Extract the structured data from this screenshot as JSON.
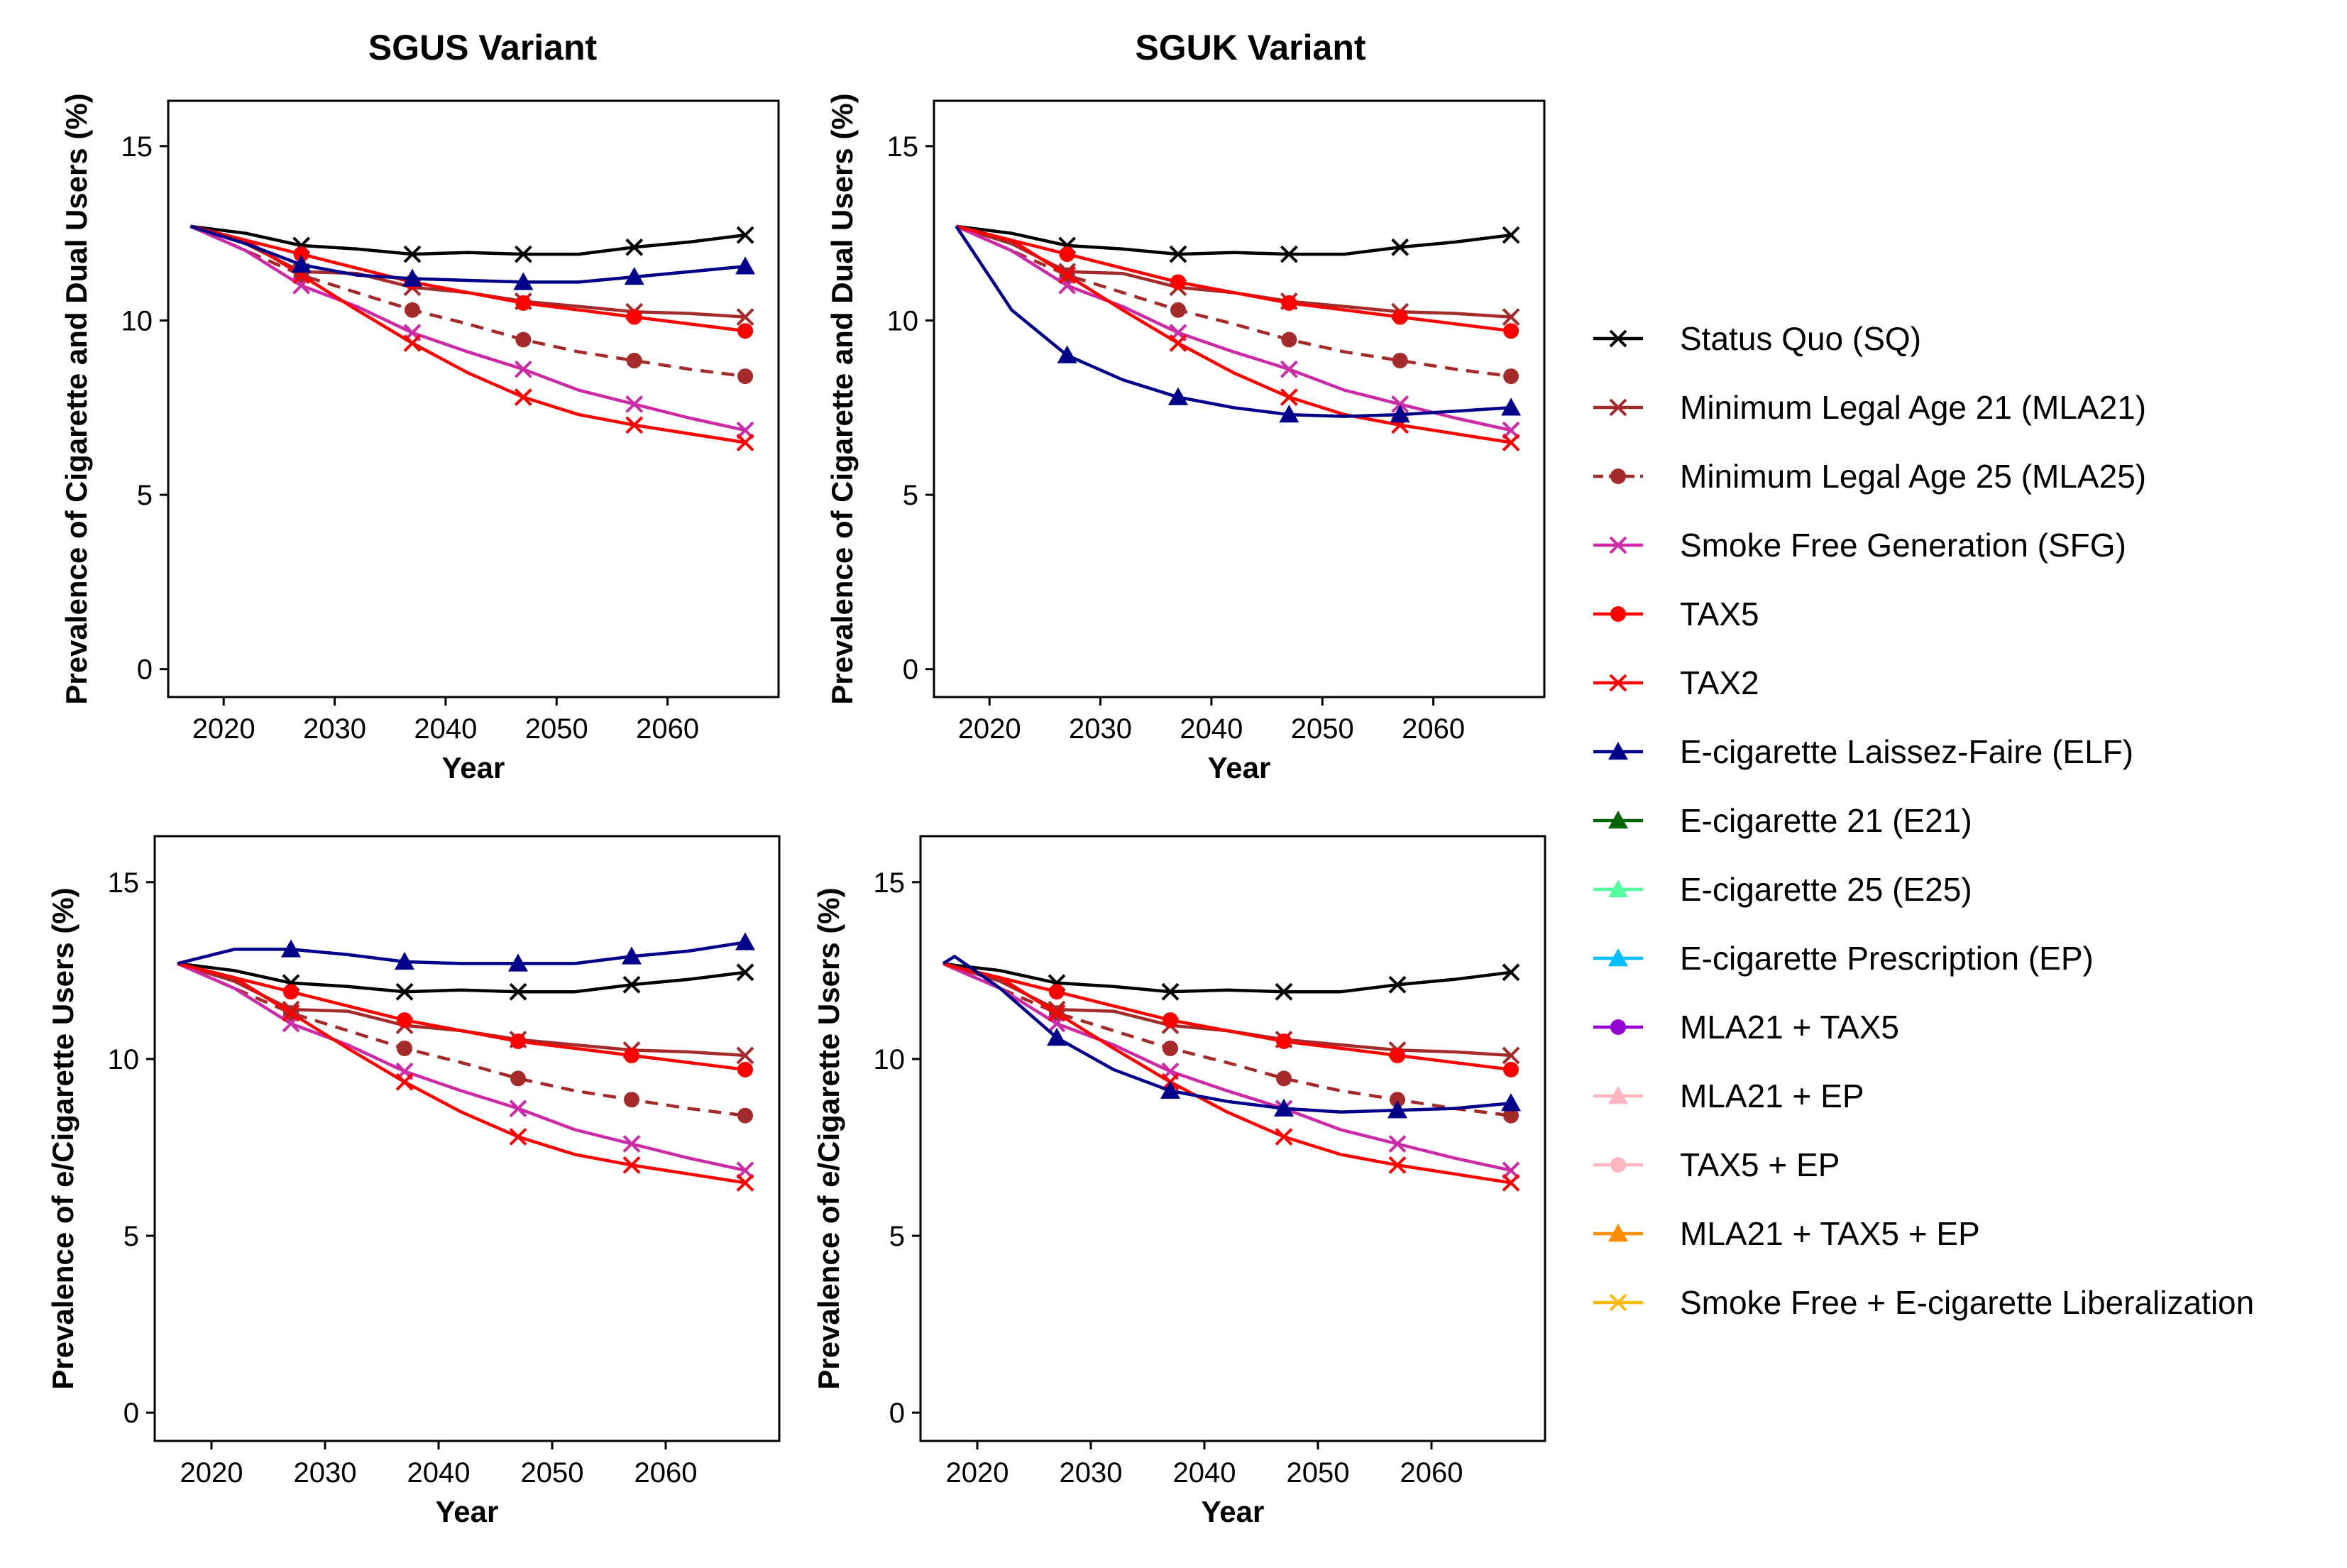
{
  "panels_titles": {
    "sgus": "SGUS Variant",
    "sguk": "SGUK Variant"
  },
  "legend": [
    {
      "label": "Status Quo (SQ)",
      "color": "#000000",
      "marker": "x",
      "dash": false
    },
    {
      "label": "Minimum Legal Age 21 (MLA21)",
      "color": "#a52a2a",
      "marker": "x",
      "dash": false
    },
    {
      "label": "Minimum Legal Age 25 (MLA25)",
      "color": "#a52a2a",
      "marker": "circle",
      "dash": true
    },
    {
      "label": "Smoke Free Generation (SFG)",
      "color": "#cc2aa6",
      "marker": "x",
      "dash": false
    },
    {
      "label": "TAX5",
      "color": "#ff0000",
      "marker": "circle",
      "dash": false
    },
    {
      "label": "TAX2",
      "color": "#ff0000",
      "marker": "x",
      "dash": false
    },
    {
      "label": "E-cigarette Laissez-Faire (ELF)",
      "color": "#00008b",
      "marker": "triangle",
      "dash": false
    },
    {
      "label": "E-cigarette 21 (E21)",
      "color": "#006400",
      "marker": "triangle",
      "dash": false
    },
    {
      "label": "E-cigarette 25 (E25)",
      "color": "#54ff9f",
      "marker": "triangle",
      "dash": false
    },
    {
      "label": "E-cigarette Prescription (EP)",
      "color": "#00bfff",
      "marker": "triangle",
      "dash": false
    },
    {
      "label": "MLA21 + TAX5",
      "color": "#9400d3",
      "marker": "circle",
      "dash": false
    },
    {
      "label": "MLA21 + EP",
      "color": "#ffb6c1",
      "marker": "triangle",
      "dash": false
    },
    {
      "label": "TAX5 + EP",
      "color": "#ffb6c1",
      "marker": "circle",
      "dash": false
    },
    {
      "label": "MLA21 + TAX5 + EP",
      "color": "#ff8c00",
      "marker": "triangle",
      "dash": false
    },
    {
      "label": "Smoke Free + E-cigarette Liberalization",
      "color": "#ffb90f",
      "marker": "x",
      "dash": false
    }
  ],
  "chart_data": [
    {
      "type": "line",
      "panel": "top-left",
      "title": "SGUS Variant",
      "xlabel": "Year",
      "ylabel": "Prevalence of Cigarette and Dual Users (%)",
      "xlim": [
        2015,
        2070
      ],
      "ylim": [
        -0.8,
        16.3
      ],
      "xticks": [
        2020,
        2030,
        2040,
        2050,
        2060
      ],
      "yticks": [
        0,
        5,
        10,
        15
      ],
      "x": [
        2017,
        2022,
        2027,
        2032,
        2037,
        2042,
        2047,
        2052,
        2057,
        2062,
        2067
      ],
      "series": [
        {
          "name": "Status Quo (SQ)",
          "values": [
            12.7,
            12.5,
            12.15,
            12.05,
            11.9,
            11.95,
            11.9,
            11.9,
            12.1,
            12.25,
            12.45
          ]
        },
        {
          "name": "Minimum Legal Age 21 (MLA21)",
          "values": [
            12.7,
            12.2,
            11.4,
            11.35,
            10.95,
            10.8,
            10.55,
            10.4,
            10.25,
            10.2,
            10.1
          ]
        },
        {
          "name": "Minimum Legal Age 25 (MLA25)",
          "values": [
            12.7,
            12.0,
            11.3,
            10.8,
            10.3,
            9.9,
            9.45,
            9.1,
            8.85,
            8.6,
            8.4
          ]
        },
        {
          "name": "Smoke Free Generation (SFG)",
          "values": [
            12.7,
            12.0,
            11.0,
            10.4,
            9.65,
            9.1,
            8.6,
            8.0,
            7.6,
            7.2,
            6.85
          ]
        },
        {
          "name": "TAX5",
          "values": [
            12.7,
            12.3,
            11.9,
            11.5,
            11.1,
            10.8,
            10.5,
            10.3,
            10.1,
            9.9,
            9.7
          ]
        },
        {
          "name": "TAX2",
          "values": [
            12.7,
            12.3,
            11.3,
            10.3,
            9.35,
            8.5,
            7.8,
            7.3,
            7.0,
            6.75,
            6.5
          ]
        },
        {
          "name": "E-cigarette Laissez-Faire (ELF)",
          "values": [
            12.7,
            12.2,
            11.6,
            11.3,
            11.2,
            11.15,
            11.1,
            11.1,
            11.25,
            11.4,
            11.55
          ]
        }
      ]
    },
    {
      "type": "line",
      "panel": "top-right",
      "title": "SGUK Variant",
      "xlabel": "Year",
      "ylabel": "Prevalence of Cigarette and Dual Users (%)",
      "xlim": [
        2015,
        2070
      ],
      "ylim": [
        -0.8,
        16.3
      ],
      "xticks": [
        2020,
        2030,
        2040,
        2050,
        2060
      ],
      "yticks": [
        0,
        5,
        10,
        15
      ],
      "x": [
        2017,
        2022,
        2027,
        2032,
        2037,
        2042,
        2047,
        2052,
        2057,
        2062,
        2067
      ],
      "series": [
        {
          "name": "Status Quo (SQ)",
          "values": [
            12.7,
            12.5,
            12.15,
            12.05,
            11.9,
            11.95,
            11.9,
            11.9,
            12.1,
            12.25,
            12.45
          ]
        },
        {
          "name": "Minimum Legal Age 21 (MLA21)",
          "values": [
            12.7,
            12.2,
            11.4,
            11.35,
            10.95,
            10.8,
            10.55,
            10.4,
            10.25,
            10.2,
            10.1
          ]
        },
        {
          "name": "Minimum Legal Age 25 (MLA25)",
          "values": [
            12.7,
            12.0,
            11.3,
            10.8,
            10.3,
            9.9,
            9.45,
            9.1,
            8.85,
            8.6,
            8.4
          ]
        },
        {
          "name": "Smoke Free Generation (SFG)",
          "values": [
            12.7,
            12.0,
            11.0,
            10.4,
            9.65,
            9.1,
            8.6,
            8.0,
            7.6,
            7.2,
            6.85
          ]
        },
        {
          "name": "TAX5",
          "values": [
            12.7,
            12.3,
            11.9,
            11.5,
            11.1,
            10.8,
            10.5,
            10.3,
            10.1,
            9.9,
            9.7
          ]
        },
        {
          "name": "TAX2",
          "values": [
            12.7,
            12.3,
            11.3,
            10.3,
            9.35,
            8.5,
            7.8,
            7.3,
            7.0,
            6.75,
            6.5
          ]
        },
        {
          "name": "E-cigarette Laissez-Faire (ELF)",
          "values": [
            12.7,
            10.3,
            9.0,
            8.3,
            7.8,
            7.5,
            7.3,
            7.25,
            7.3,
            7.4,
            7.5
          ]
        }
      ]
    },
    {
      "type": "line",
      "panel": "bottom-left",
      "title": "",
      "xlabel": "Year",
      "ylabel": "Prevalence of e/Cigarette Users (%)",
      "xlim": [
        2015,
        2070
      ],
      "ylim": [
        -0.8,
        16.3
      ],
      "xticks": [
        2020,
        2030,
        2040,
        2050,
        2060
      ],
      "yticks": [
        0,
        5,
        10,
        15
      ],
      "x": [
        2017,
        2022,
        2027,
        2032,
        2037,
        2042,
        2047,
        2052,
        2057,
        2062,
        2067
      ],
      "series": [
        {
          "name": "Status Quo (SQ)",
          "values": [
            12.7,
            12.5,
            12.15,
            12.05,
            11.9,
            11.95,
            11.9,
            11.9,
            12.1,
            12.25,
            12.45
          ]
        },
        {
          "name": "Minimum Legal Age 21 (MLA21)",
          "values": [
            12.7,
            12.2,
            11.4,
            11.35,
            10.95,
            10.8,
            10.55,
            10.4,
            10.25,
            10.2,
            10.1
          ]
        },
        {
          "name": "Minimum Legal Age 25 (MLA25)",
          "values": [
            12.7,
            12.0,
            11.3,
            10.8,
            10.3,
            9.9,
            9.45,
            9.1,
            8.85,
            8.6,
            8.4
          ]
        },
        {
          "name": "Smoke Free Generation (SFG)",
          "values": [
            12.7,
            12.0,
            11.0,
            10.4,
            9.65,
            9.1,
            8.6,
            8.0,
            7.6,
            7.2,
            6.85
          ]
        },
        {
          "name": "TAX5",
          "values": [
            12.7,
            12.3,
            11.9,
            11.5,
            11.1,
            10.8,
            10.5,
            10.3,
            10.1,
            9.9,
            9.7
          ]
        },
        {
          "name": "TAX2",
          "values": [
            12.7,
            12.3,
            11.3,
            10.3,
            9.35,
            8.5,
            7.8,
            7.3,
            7.0,
            6.75,
            6.5
          ]
        },
        {
          "name": "E-cigarette Laissez-Faire (ELF)",
          "values": [
            12.7,
            13.1,
            13.1,
            12.95,
            12.75,
            12.7,
            12.7,
            12.7,
            12.9,
            13.05,
            13.3
          ]
        }
      ]
    },
    {
      "type": "line",
      "panel": "bottom-right",
      "title": "",
      "xlabel": "Year",
      "ylabel": "Prevalence of e/Cigarette Users (%)",
      "xlim": [
        2015,
        2070
      ],
      "ylim": [
        -0.8,
        16.3
      ],
      "xticks": [
        2020,
        2030,
        2040,
        2050,
        2060
      ],
      "yticks": [
        0,
        5,
        10,
        15
      ],
      "x": [
        2017,
        2018,
        2022,
        2027,
        2032,
        2037,
        2042,
        2047,
        2052,
        2057,
        2062,
        2067
      ],
      "series": [
        {
          "name": "Status Quo (SQ)",
          "values": [
            12.7,
            12.65,
            12.5,
            12.15,
            12.05,
            11.9,
            11.95,
            11.9,
            11.9,
            12.1,
            12.25,
            12.45
          ]
        },
        {
          "name": "Minimum Legal Age 21 (MLA21)",
          "values": [
            12.7,
            12.6,
            12.2,
            11.4,
            11.35,
            10.95,
            10.8,
            10.55,
            10.4,
            10.25,
            10.2,
            10.1
          ]
        },
        {
          "name": "Minimum Legal Age 25 (MLA25)",
          "values": [
            12.7,
            12.55,
            12.0,
            11.3,
            10.8,
            10.3,
            9.9,
            9.45,
            9.1,
            8.85,
            8.6,
            8.4
          ]
        },
        {
          "name": "Smoke Free Generation (SFG)",
          "values": [
            12.7,
            12.55,
            12.0,
            11.0,
            10.4,
            9.65,
            9.1,
            8.6,
            8.0,
            7.6,
            7.2,
            6.85
          ]
        },
        {
          "name": "TAX5",
          "values": [
            12.7,
            12.6,
            12.3,
            11.9,
            11.5,
            11.1,
            10.8,
            10.5,
            10.3,
            10.1,
            9.9,
            9.7
          ]
        },
        {
          "name": "TAX2",
          "values": [
            12.7,
            12.6,
            12.3,
            11.3,
            10.3,
            9.35,
            8.5,
            7.8,
            7.3,
            7.0,
            6.75,
            6.5
          ]
        },
        {
          "name": "E-cigarette Laissez-Faire (ELF)",
          "values": [
            12.7,
            12.9,
            12.0,
            10.6,
            9.7,
            9.1,
            8.8,
            8.6,
            8.5,
            8.55,
            8.6,
            8.75
          ]
        }
      ]
    }
  ]
}
